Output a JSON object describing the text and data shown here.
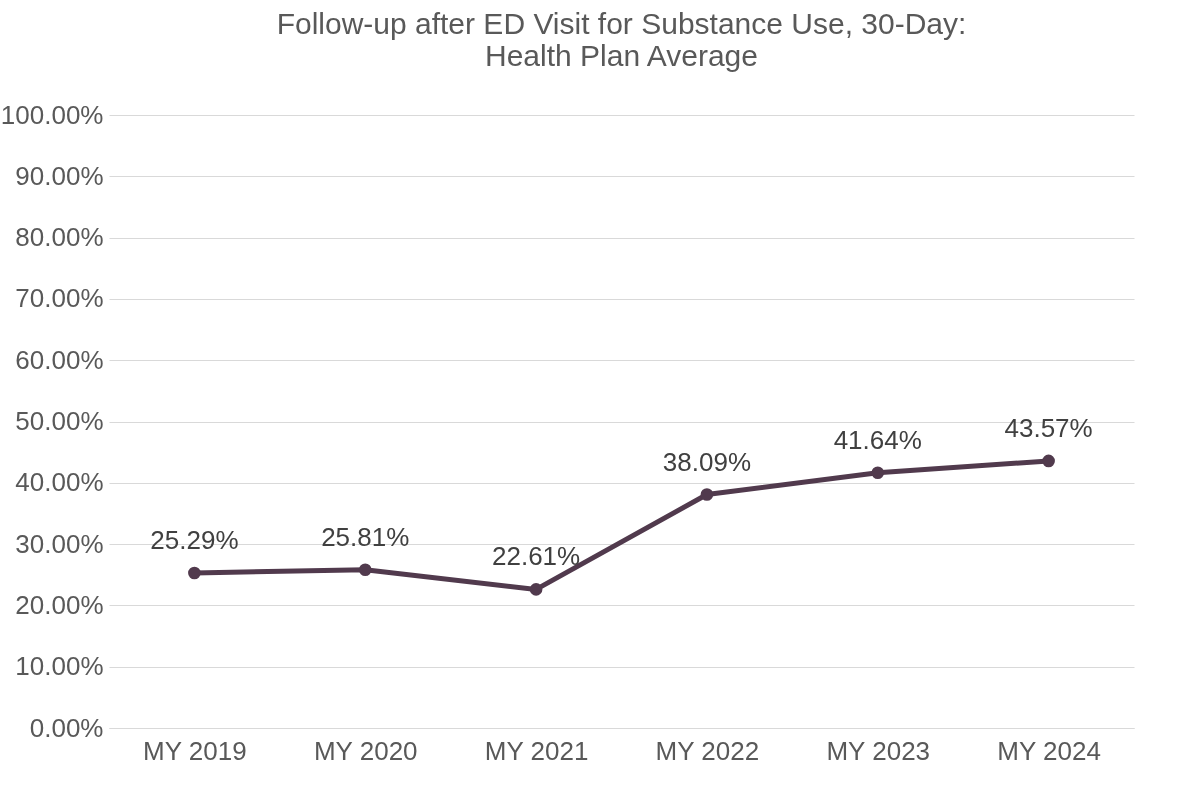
{
  "chart_data": {
    "type": "line",
    "title": "Follow-up after ED Visit for Substance Use, 30-Day: Health Plan Average",
    "categories": [
      "MY 2019",
      "MY 2020",
      "MY 2021",
      "MY 2022",
      "MY 2023",
      "MY 2024"
    ],
    "series": [
      {
        "color": "#513a4d",
        "values": [
          25.29,
          25.81,
          22.61,
          38.09,
          41.64,
          43.57
        ],
        "value_labels": [
          "25.29%",
          "25.81%",
          "22.61%",
          "38.09%",
          "41.64%",
          "43.57%"
        ]
      }
    ],
    "ylim": [
      0,
      100
    ],
    "yticks": [
      {
        "value": 0,
        "label": "0.00%"
      },
      {
        "value": 10,
        "label": "10.00%"
      },
      {
        "value": 20,
        "label": "20.00%"
      },
      {
        "value": 30,
        "label": "30.00%"
      },
      {
        "value": 40,
        "label": "40.00%"
      },
      {
        "value": 50,
        "label": "50.00%"
      },
      {
        "value": 60,
        "label": "60.00%"
      },
      {
        "value": 70,
        "label": "70.00%"
      },
      {
        "value": 80,
        "label": "80.00%"
      },
      {
        "value": 90,
        "label": "90.00%"
      },
      {
        "value": 100,
        "label": "100.00%"
      }
    ],
    "grid": "y",
    "marker": "circle",
    "line_style": "solid"
  }
}
